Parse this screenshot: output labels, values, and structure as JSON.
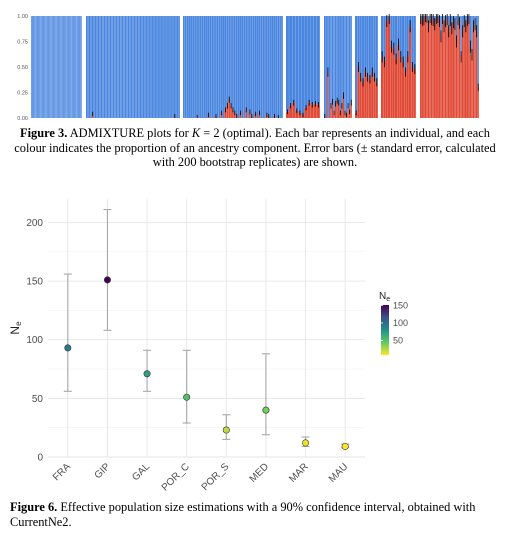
{
  "figure3": {
    "label": "Figure 3.",
    "caption_pre": " ADMIXTURE plots for ",
    "k_symbol": "K",
    "caption_post": " = 2 (optimal). Each bar represents an individual, and each colour indicates the proportion of an ancestry component. Error bars (± standard error, calculated with 200 bootstrap replicates) are shown."
  },
  "figure6": {
    "label": "Figure 6.",
    "caption": " Effective population size estimations with a 90% confidence interval, obtained with CurrentNe2."
  },
  "chart_data": [
    {
      "type": "bar",
      "stacked": true,
      "title": "",
      "y_ticks": [
        "1.00",
        "0.75",
        "0.50",
        "0.25",
        "0.00"
      ],
      "ylim": [
        0,
        1
      ],
      "colors": {
        "component_1": "#4a86e0",
        "component_2": "#e04a36",
        "error_bar": "#000000"
      },
      "groups": [
        {
          "values": [
            0,
            0,
            0,
            0,
            0,
            0,
            0,
            0,
            0,
            0,
            0,
            0,
            0,
            0,
            0,
            0,
            0,
            0,
            0,
            0,
            0,
            0,
            0,
            0,
            0,
            0,
            0,
            0,
            0,
            0,
            0,
            0,
            0,
            0,
            0,
            0,
            0,
            0,
            0,
            0,
            0,
            0,
            0,
            0,
            0,
            0,
            0,
            0,
            0,
            0,
            0,
            0,
            0,
            0,
            0,
            0,
            0,
            0,
            0,
            0,
            0
          ]
        },
        {
          "values": [
            0,
            0,
            0,
            0,
            0.04,
            0,
            0,
            0,
            0,
            0,
            0,
            0,
            0,
            0,
            0,
            0,
            0,
            0,
            0,
            0,
            0,
            0,
            0,
            0,
            0,
            0,
            0,
            0,
            0,
            0,
            0,
            0,
            0,
            0,
            0,
            0,
            0,
            0,
            0,
            0,
            0,
            0,
            0,
            0,
            0,
            0,
            0,
            0,
            0,
            0,
            0,
            0,
            0,
            0,
            0,
            0,
            0,
            0,
            0,
            0.02,
            0,
            0,
            0
          ]
        },
        {
          "values": [
            0,
            0,
            0,
            0,
            0,
            0,
            0,
            0.01,
            0,
            0,
            0,
            0,
            0,
            0.03,
            0,
            0,
            0,
            0.02,
            0,
            0,
            0.05,
            0,
            0.08,
            0.12,
            0.18,
            0.12,
            0.08,
            0.05,
            0.02,
            0,
            0.05,
            0,
            0,
            0.08,
            0,
            0.06,
            0.02,
            0,
            0.04,
            0,
            0.05,
            0,
            0,
            0,
            0.03,
            0.02,
            0,
            0,
            0.02,
            0,
            0.01,
            0,
            0
          ]
        },
        {
          "values": [
            0.06,
            0.12,
            0.15,
            0.07,
            0.05,
            0.03,
            0.1,
            0.15,
            0.13,
            0.14,
            0.13
          ]
        },
        {
          "values": [
            0.02,
            0,
            0.45,
            0,
            0.12,
            0.16,
            0.05,
            0.14,
            0.17,
            0.15,
            0.05,
            0.12,
            0.22,
            0.05,
            0.03,
            0.12,
            0.06,
            0.15
          ]
        },
        {
          "values": [
            0.05,
            0.5,
            0.4,
            0.35,
            0.45,
            0.4,
            0.38,
            0.45,
            0.4,
            0.35
          ]
        },
        {
          "values": [
            0.6,
            0.55,
            0.95,
            0.98,
            0.7,
            0.68,
            0.58,
            0.72,
            0.6,
            0.55,
            0.45,
            0.6,
            0.9,
            0.5,
            0.48
          ]
        },
        {
          "values": [
            0.98,
            0.96,
            0.97,
            1,
            0.99,
            0.9,
            0.99,
            0.97,
            0.96,
            0.92,
            0.98,
            0.99,
            0.95,
            0.8,
            0.98,
            0.9,
            0.95,
            0.97,
            0.85,
            0.96,
            0.88,
            0.94,
            0.92,
            0.75,
            0.97,
            0.93,
            0.6,
            0.85,
            0.95,
            0.9,
            0.96,
            0.98,
            0.7,
            0.62,
            0.9,
            0.92,
            0.85,
            0.3
          ]
        }
      ]
    },
    {
      "type": "scatter",
      "title": "",
      "xlabel": "",
      "ylabel": "Ne",
      "categories": [
        "FRA",
        "GIP",
        "GAL",
        "POR_C",
        "POR_S",
        "MED",
        "MAR",
        "MAU"
      ],
      "values": [
        93,
        151,
        71,
        51,
        23,
        40,
        12,
        9
      ],
      "lower": [
        56,
        108,
        56,
        29,
        15,
        19,
        9,
        8
      ],
      "upper": [
        156,
        211,
        91,
        91,
        36,
        88,
        17,
        11
      ],
      "ylim": [
        0,
        220
      ],
      "y_ticks": [
        0,
        50,
        100,
        150,
        200
      ],
      "grid": true,
      "legend": {
        "title": "Ne",
        "placement": "right",
        "ticks": [
          150,
          100,
          50
        ],
        "colors": [
          "#440154",
          "#3b528b",
          "#21918c",
          "#5ec962",
          "#fde725"
        ]
      }
    }
  ]
}
